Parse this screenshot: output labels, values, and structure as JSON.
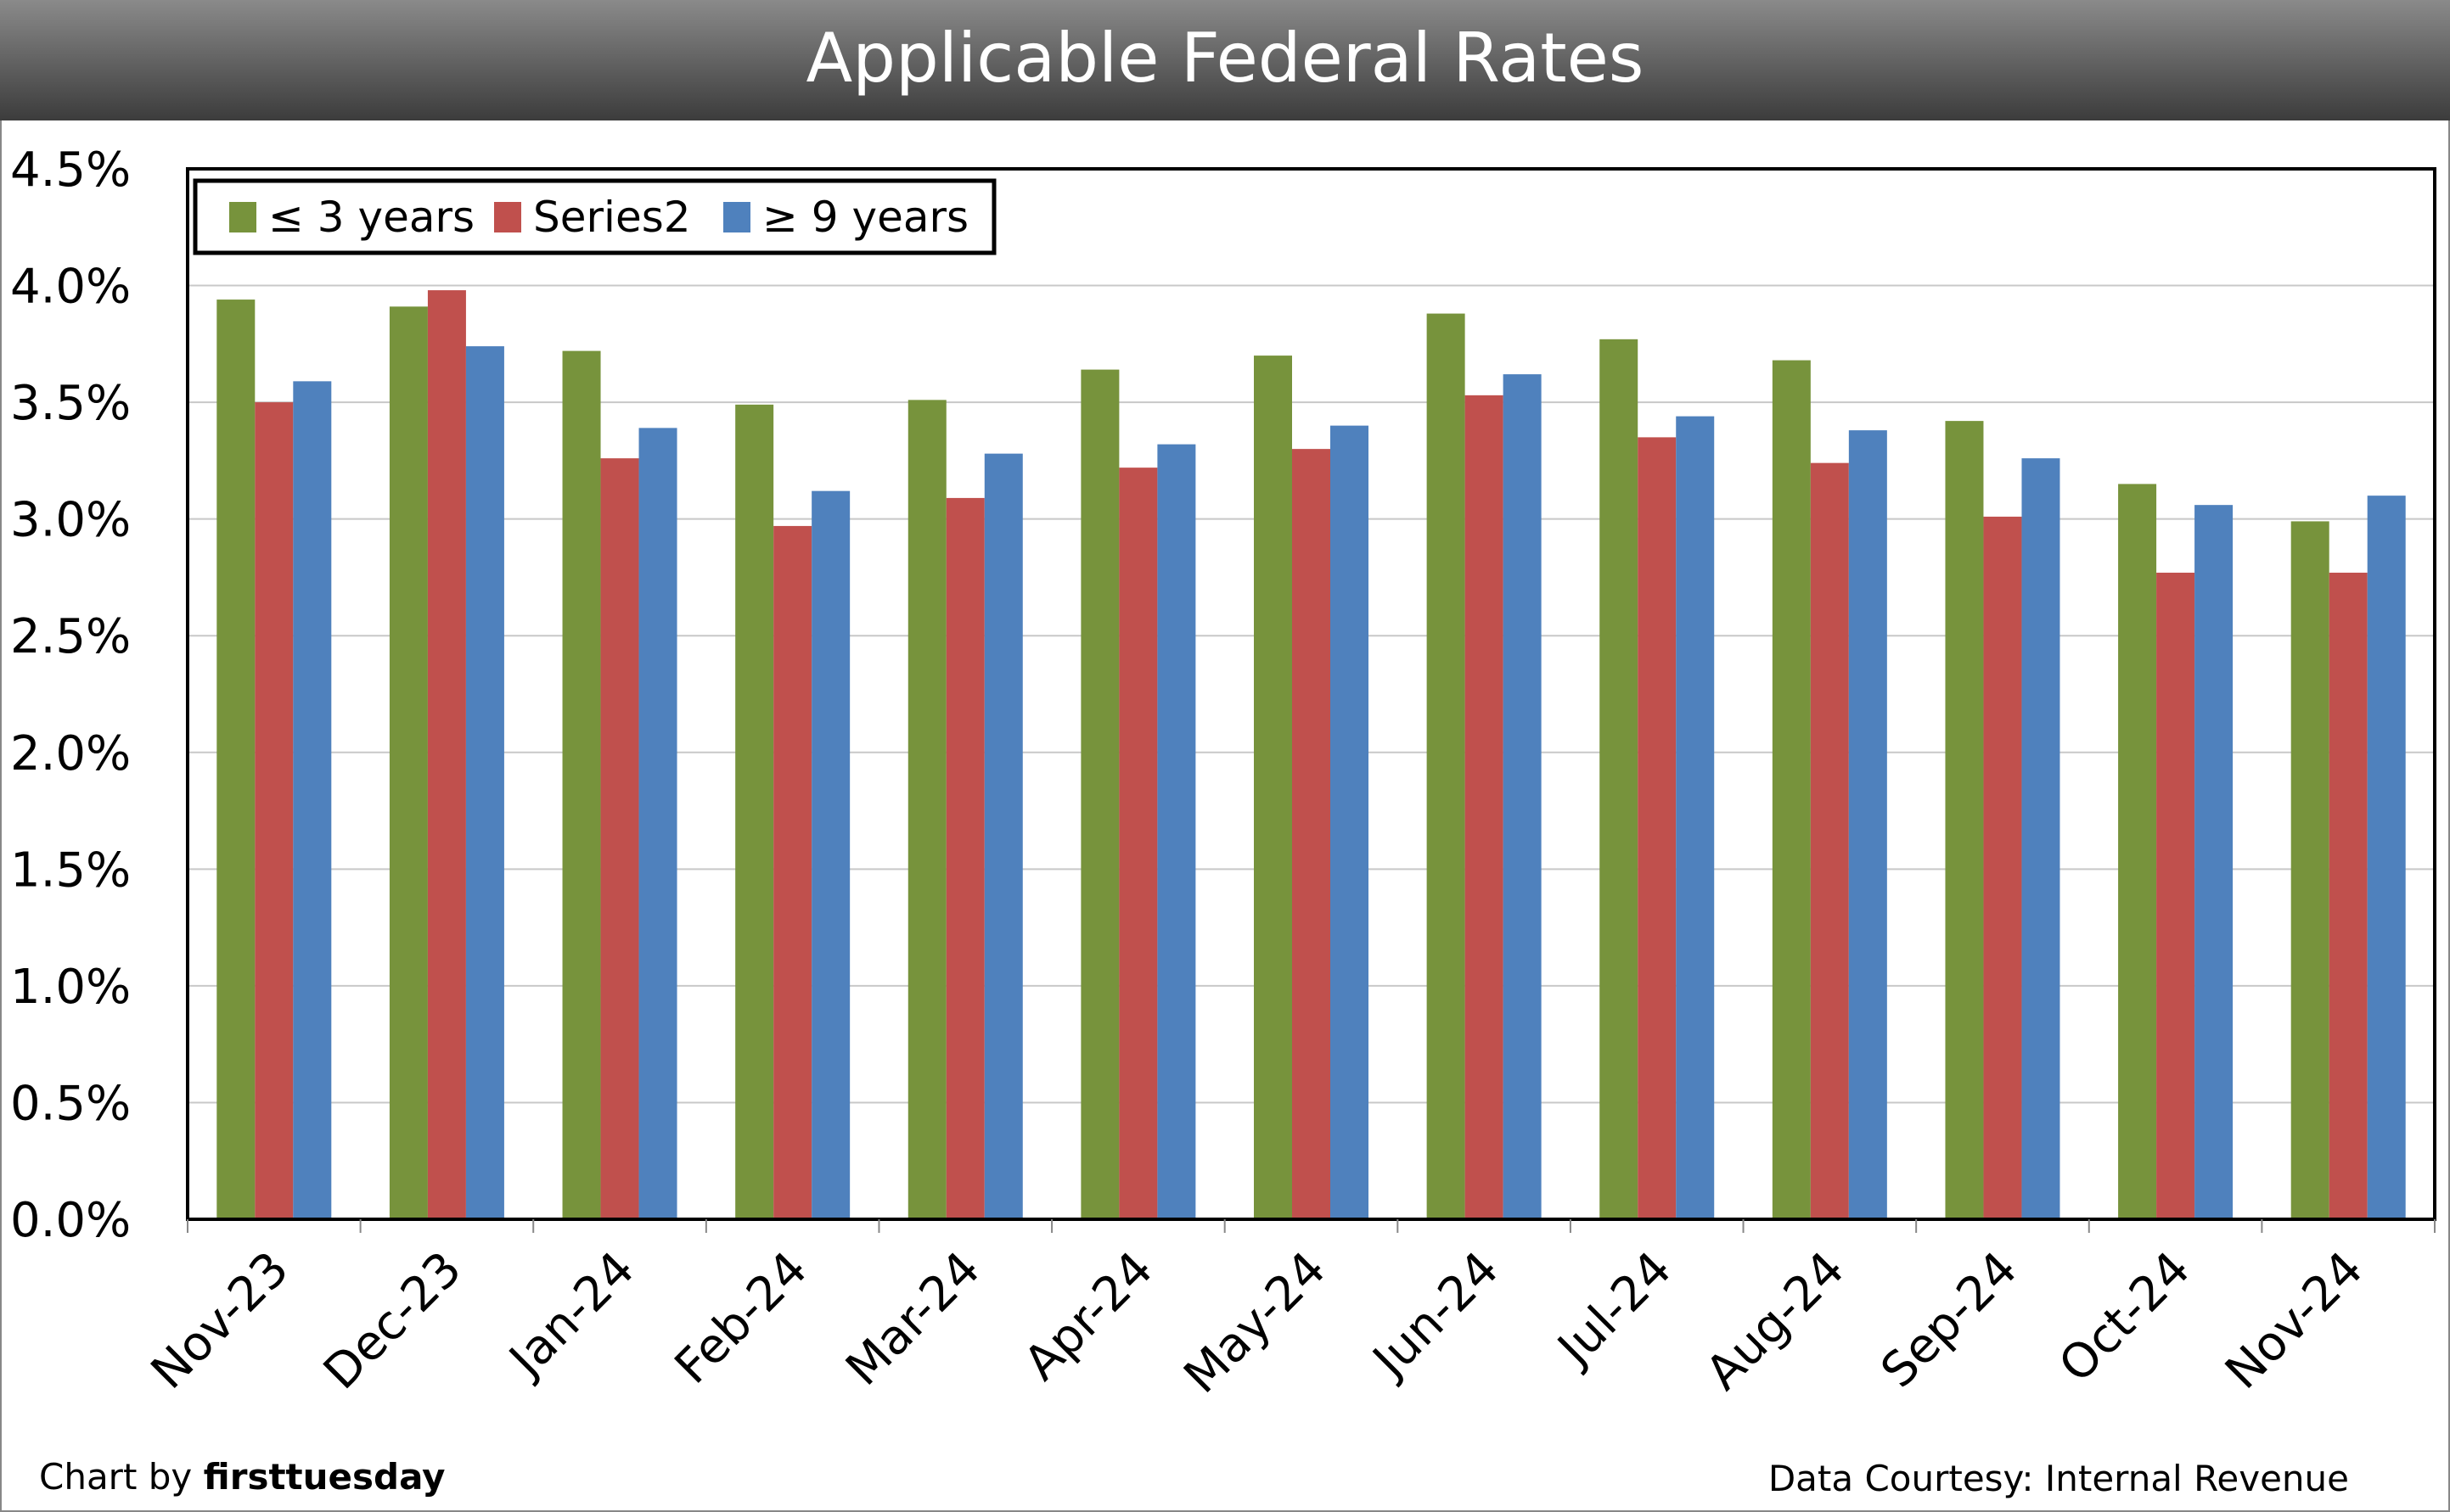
{
  "chart_data": {
    "type": "bar",
    "title": "Applicable Federal Rates",
    "xlabel": "",
    "ylabel": "",
    "ylim": [
      0,
      4.5
    ],
    "yticks": [
      "0.0%",
      "0.5%",
      "1.0%",
      "1.5%",
      "2.0%",
      "2.5%",
      "3.0%",
      "3.5%",
      "4.0%",
      "4.5%"
    ],
    "grid": true,
    "legend_position": "top-left",
    "categories": [
      "Nov-23",
      "Dec-23",
      "Jan-24",
      "Feb-24",
      "Mar-24",
      "Apr-24",
      "May-24",
      "Jun-24",
      "Jul-24",
      "Aug-24",
      "Sep-24",
      "Oct-24",
      "Nov-24"
    ],
    "series": [
      {
        "name": "≤ 3 years",
        "color": "#77933c",
        "values": [
          3.94,
          3.91,
          3.72,
          3.49,
          3.51,
          3.64,
          3.7,
          3.88,
          3.77,
          3.68,
          3.42,
          3.15,
          2.99
        ]
      },
      {
        "name": "Series2",
        "color": "#c0504d",
        "values": [
          3.5,
          3.98,
          3.26,
          2.97,
          3.09,
          3.22,
          3.3,
          3.53,
          3.35,
          3.24,
          3.01,
          2.77,
          2.77
        ]
      },
      {
        "name": "≥  9 years",
        "color": "#4f81bd",
        "values": [
          3.59,
          3.74,
          3.39,
          3.12,
          3.28,
          3.32,
          3.4,
          3.62,
          3.44,
          3.38,
          3.26,
          3.06,
          3.1
        ]
      }
    ]
  },
  "footer": {
    "credit_prefix": "Chart by ",
    "credit_brand": "firsttuesday",
    "source": "Data Courtesy: Internal Revenue"
  }
}
